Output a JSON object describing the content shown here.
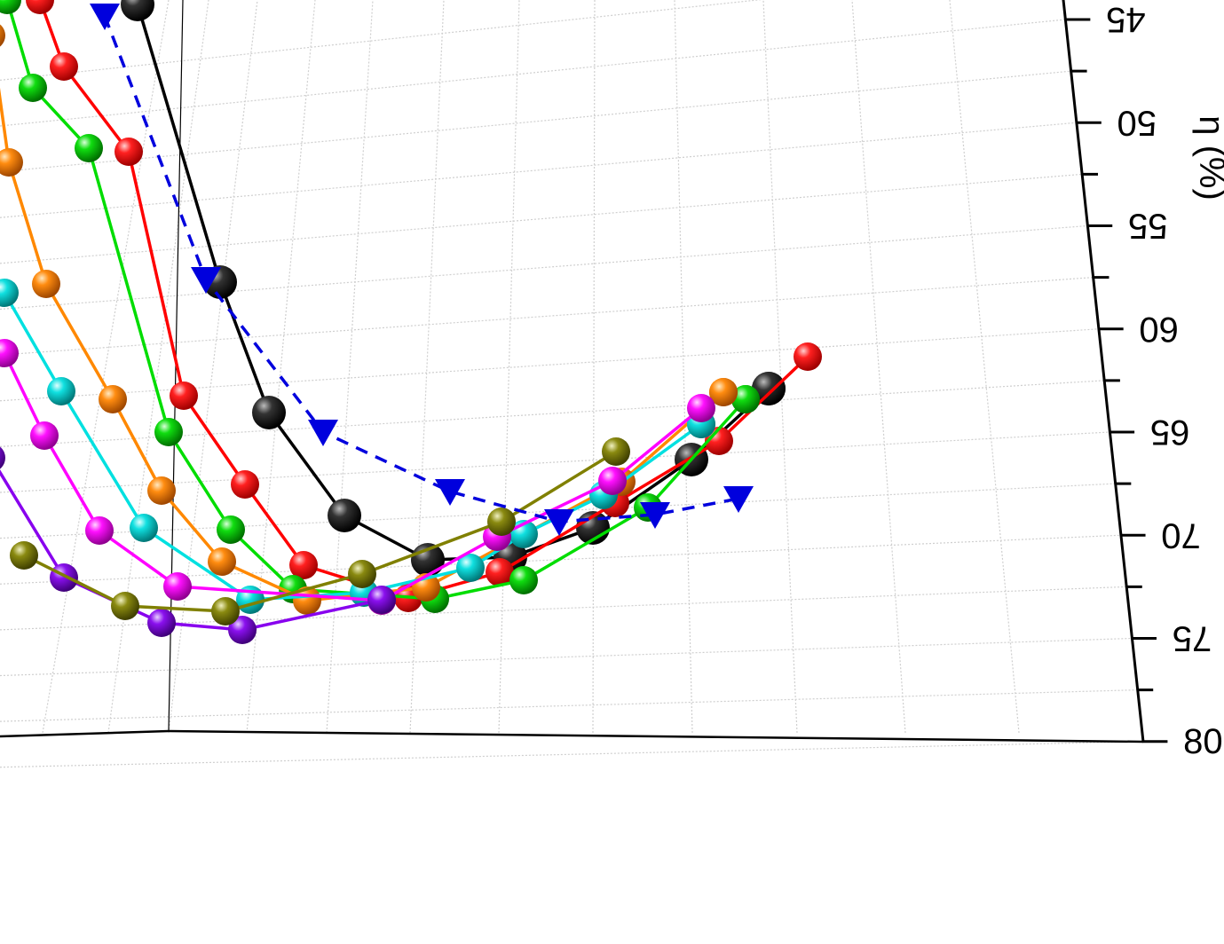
{
  "chart_data": {
    "type": "line",
    "title": "",
    "ylabel": "η (%)",
    "ylim": [
      40,
      80
    ],
    "y_ticks": [
      "45",
      "50",
      "55",
      "60",
      "65",
      "70",
      "75",
      "80"
    ],
    "grid": true,
    "orientation_note": "3D plot shown mirrored/rotated 180°",
    "series": [
      {
        "color": "#000000",
        "marker": "sphere",
        "line": "solid",
        "values": [
          40.3,
          53.1,
          60.5,
          65.3,
          69.9,
          70.3,
          70.2,
          70.3,
          63.5,
          62.4
        ]
      },
      {
        "color": "#ff0000",
        "marker": "sphere",
        "line": "solid",
        "values": [
          43.6,
          49.4,
          56.5,
          64.3,
          67.3,
          72.4,
          72.4,
          72.4,
          70.8,
          64.9,
          61.7
        ]
      },
      {
        "color": "#00dd00",
        "marker": "sphere",
        "line": "solid",
        "values": [
          46.1,
          48.3,
          54.8,
          62.9,
          66.8,
          72.3,
          72.6,
          72.7,
          69.9,
          64.3,
          62.8
        ]
      },
      {
        "color": "#ff8800",
        "marker": "sphere",
        "line": "solid",
        "values": [
          49.5,
          54.5,
          62.3,
          66.2,
          69.7,
          72.3,
          73.0,
          72.6,
          69.9,
          64.6,
          62.3
        ]
      },
      {
        "color": "#00e0e0",
        "marker": "sphere",
        "line": "solid",
        "values": [
          55.2,
          60.6,
          65.1,
          68.8,
          73.2,
          73.4,
          72.4,
          70.1,
          64.8,
          62.6
        ]
      },
      {
        "color": "#ff00ff",
        "marker": "sphere",
        "line": "solid",
        "values": [
          59.5,
          63.9,
          68.1,
          72.8,
          73.5,
          72.4,
          70.0,
          64.6
        ]
      },
      {
        "color": "#8800ee",
        "marker": "sphere",
        "line": "solid",
        "values": [
          63.8,
          71.4,
          74.8,
          74.9,
          73.4
        ]
      },
      {
        "color": "#808000",
        "marker": "sphere",
        "line": "solid",
        "values": [
          68.7,
          73.9,
          74.5,
          73.0,
          70.7,
          65.5
        ]
      },
      {
        "color": "#0000dd",
        "marker": "triangle",
        "line": "dashed",
        "values": [
          40.6,
          53.2,
          65.3,
          68.2,
          69.9,
          69.1,
          68.2
        ]
      }
    ]
  }
}
